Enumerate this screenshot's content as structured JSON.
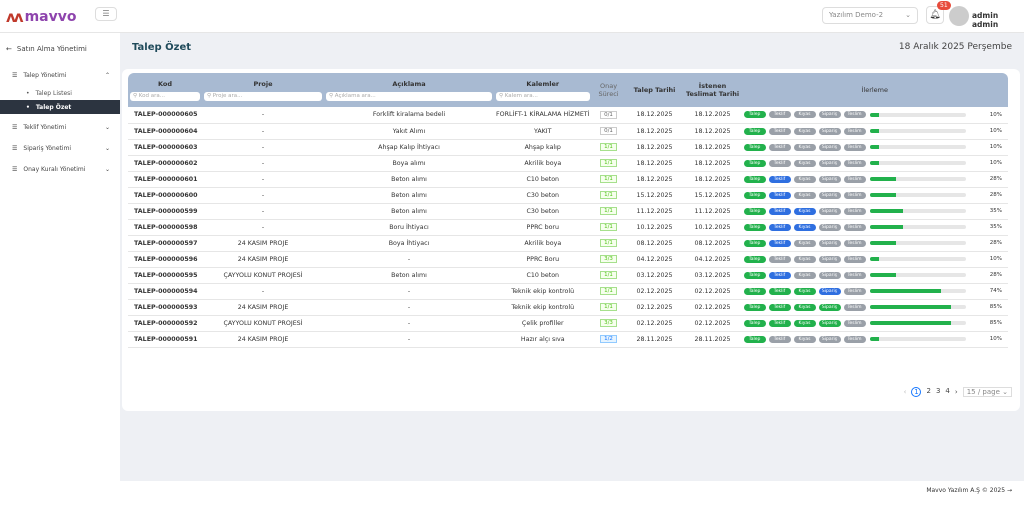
{
  "app": {
    "logo": "mavvo",
    "menu_icon": "sliders-icon"
  },
  "header": {
    "company_select": "Yazılım Demo-2",
    "notification_count": "51",
    "user": "admin admin"
  },
  "sidebar": {
    "back_label": "Satın Alma Yönetimi",
    "items": [
      {
        "label": "Talep Yönetimi",
        "expanded": true,
        "children": [
          {
            "label": "Talep Listesi",
            "active": false
          },
          {
            "label": "Talep Özet",
            "active": true
          }
        ]
      },
      {
        "label": "Teklif Yönetimi"
      },
      {
        "label": "Sipariş Yönetimi"
      },
      {
        "label": "Onay Kuralı Yönetimi"
      }
    ]
  },
  "page": {
    "title": "Talep Özet",
    "date": "18 Aralık 2025 Perşembe"
  },
  "table": {
    "headers": {
      "kod": "Kod",
      "proje": "Proje",
      "aciklama": "Açıklama",
      "kalemler": "Kalemler",
      "onay": "Onay Süreci",
      "talep_tarihi": "Talep Tarihi",
      "teslimat": "İstenen Teslimat Tarihi",
      "ilerleme": "İlerleme"
    },
    "placeholders": {
      "kod": "Kod ara...",
      "proje": "Proje ara...",
      "aciklama": "Açıklama ara...",
      "kalemler": "Kalem ara..."
    },
    "stage_labels": [
      "Talep",
      "Teklif",
      "Kıyas",
      "Sipariş",
      "Teslim"
    ],
    "status_colors": {
      "done": "#22b14c",
      "current": "#2f6fe0",
      "pending": "#9aa0a8"
    },
    "rows": [
      {
        "kod": "TALEP-000000605",
        "proje": "-",
        "aciklama": "Forklift kiralama bedeli",
        "kalemler": "FORLİFT-1 KİRALAMA HİZMETİ",
        "onay": "0/1",
        "onay_state": "pending",
        "talep": "18.12.2025",
        "teslim": "18.12.2025",
        "stages": [
          "done",
          "pending",
          "pending",
          "pending",
          "pending"
        ],
        "progress": 10
      },
      {
        "kod": "TALEP-000000604",
        "proje": "-",
        "aciklama": "Yakıt Alımı",
        "kalemler": "YAKIT",
        "onay": "0/1",
        "onay_state": "pending",
        "talep": "18.12.2025",
        "teslim": "18.12.2025",
        "stages": [
          "done",
          "pending",
          "pending",
          "pending",
          "pending"
        ],
        "progress": 10
      },
      {
        "kod": "TALEP-000000603",
        "proje": "-",
        "aciklama": "Ahşap Kalıp İhtiyacı",
        "kalemler": "Ahşap kalıp",
        "onay": "1/1",
        "onay_state": "ok",
        "talep": "18.12.2025",
        "teslim": "18.12.2025",
        "stages": [
          "done",
          "pending",
          "pending",
          "pending",
          "pending"
        ],
        "progress": 10
      },
      {
        "kod": "TALEP-000000602",
        "proje": "-",
        "aciklama": "Boya alımı",
        "kalemler": "Akrilik boya",
        "onay": "1/1",
        "onay_state": "ok",
        "talep": "18.12.2025",
        "teslim": "18.12.2025",
        "stages": [
          "done",
          "pending",
          "pending",
          "pending",
          "pending"
        ],
        "progress": 10
      },
      {
        "kod": "TALEP-000000601",
        "proje": "-",
        "aciklama": "Beton alımı",
        "kalemler": "C10 beton",
        "onay": "1/1",
        "onay_state": "ok",
        "talep": "18.12.2025",
        "teslim": "18.12.2025",
        "stages": [
          "done",
          "current",
          "pending",
          "pending",
          "pending"
        ],
        "progress": 28
      },
      {
        "kod": "TALEP-000000600",
        "proje": "-",
        "aciklama": "Beton alımı",
        "kalemler": "C30 beton",
        "onay": "1/1",
        "onay_state": "ok",
        "talep": "15.12.2025",
        "teslim": "15.12.2025",
        "stages": [
          "done",
          "current",
          "pending",
          "pending",
          "pending"
        ],
        "progress": 28
      },
      {
        "kod": "TALEP-000000599",
        "proje": "-",
        "aciklama": "Beton alımı",
        "kalemler": "C30 beton",
        "onay": "1/1",
        "onay_state": "ok",
        "talep": "11.12.2025",
        "teslim": "11.12.2025",
        "stages": [
          "done",
          "current",
          "current",
          "pending",
          "pending"
        ],
        "progress": 35
      },
      {
        "kod": "TALEP-000000598",
        "proje": "-",
        "aciklama": "Boru İhtiyacı",
        "kalemler": "PPRC boru",
        "onay": "1/1",
        "onay_state": "ok",
        "talep": "10.12.2025",
        "teslim": "10.12.2025",
        "stages": [
          "done",
          "current",
          "current",
          "pending",
          "pending"
        ],
        "progress": 35
      },
      {
        "kod": "TALEP-000000597",
        "proje": "24 KASIM PROJE",
        "aciklama": "Boya İhtiyacı",
        "kalemler": "Akrilik boya",
        "onay": "1/1",
        "onay_state": "ok",
        "talep": "08.12.2025",
        "teslim": "08.12.2025",
        "stages": [
          "done",
          "current",
          "pending",
          "pending",
          "pending"
        ],
        "progress": 28
      },
      {
        "kod": "TALEP-000000596",
        "proje": "24 KASIM PROJE",
        "aciklama": "-",
        "kalemler": "PPRC Boru",
        "onay": "3/3",
        "onay_state": "ok",
        "talep": "04.12.2025",
        "teslim": "04.12.2025",
        "stages": [
          "done",
          "pending",
          "pending",
          "pending",
          "pending"
        ],
        "progress": 10
      },
      {
        "kod": "TALEP-000000595",
        "proje": "ÇAYYOLU KONUT PROJESİ",
        "aciklama": "Beton alımı",
        "kalemler": "C10 beton",
        "onay": "1/1",
        "onay_state": "ok",
        "talep": "03.12.2025",
        "teslim": "03.12.2025",
        "stages": [
          "done",
          "current",
          "pending",
          "pending",
          "pending"
        ],
        "progress": 28
      },
      {
        "kod": "TALEP-000000594",
        "proje": "-",
        "aciklama": "-",
        "kalemler": "Teknik ekip kontrolü",
        "onay": "1/1",
        "onay_state": "ok",
        "talep": "02.12.2025",
        "teslim": "02.12.2025",
        "stages": [
          "done",
          "done",
          "done",
          "current",
          "pending"
        ],
        "progress": 74
      },
      {
        "kod": "TALEP-000000593",
        "proje": "24 KASIM PROJE",
        "aciklama": "-",
        "kalemler": "Teknik ekip kontrolü",
        "onay": "1/1",
        "onay_state": "ok",
        "talep": "02.12.2025",
        "teslim": "02.12.2025",
        "stages": [
          "done",
          "done",
          "done",
          "done",
          "pending"
        ],
        "progress": 85
      },
      {
        "kod": "TALEP-000000592",
        "proje": "ÇAYYOLU KONUT PROJESİ",
        "aciklama": "-",
        "kalemler": "Çelik profiller",
        "onay": "3/3",
        "onay_state": "ok",
        "talep": "02.12.2025",
        "teslim": "02.12.2025",
        "stages": [
          "done",
          "done",
          "done",
          "done",
          "pending"
        ],
        "progress": 85
      },
      {
        "kod": "TALEP-000000591",
        "proje": "24 KASIM PROJE",
        "aciklama": "-",
        "kalemler": "Hazır alçı sıva",
        "onay": "1/2",
        "onay_state": "info",
        "talep": "28.11.2025",
        "teslim": "28.11.2025",
        "stages": [
          "done",
          "pending",
          "pending",
          "pending",
          "pending"
        ],
        "progress": 10
      }
    ]
  },
  "pagination": {
    "pages": [
      "1",
      "2",
      "3",
      "4"
    ],
    "current": "1",
    "page_size": "15 / page"
  },
  "footer": {
    "text": "Mavvo Yazılım A.Ş © 2025 →"
  }
}
